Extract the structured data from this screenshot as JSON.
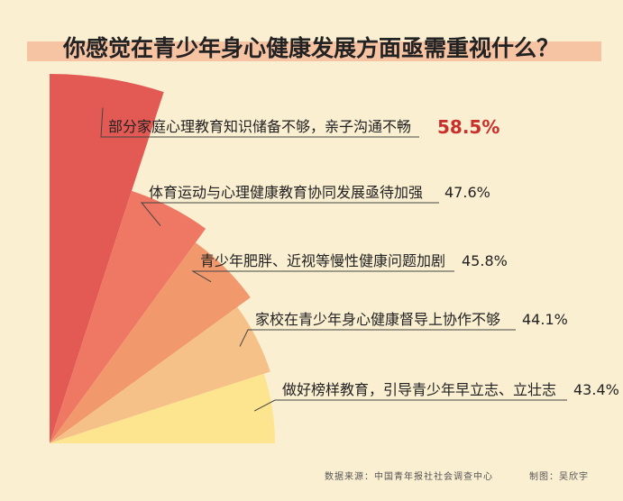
{
  "chart_data": {
    "type": "pie",
    "title": "你感觉在青少年身心健康发展方面亟需重视什么？",
    "categories": [
      "部分家庭心理教育知识储备不够，亲子沟通不畅",
      "体育运动与心理健康教育协同发展亟待加强",
      "青少年肥胖、近视等慢性健康问题加剧",
      "家校在青少年身心健康督导上协作不够",
      "做好榜样教育，引导青少年早立志、立壮志"
    ],
    "values": [
      58.5,
      47.6,
      45.8,
      44.1,
      43.4
    ],
    "value_labels": [
      "58.5%",
      "47.6%",
      "45.8%",
      "44.1%",
      "43.4%"
    ],
    "colors": [
      "#e35a55",
      "#ee7863",
      "#f1996c",
      "#f5c189",
      "#fde590"
    ],
    "highlight_color": "#c9302c"
  },
  "footer": {
    "source": "数据来源：中国青年报社社会调查中心",
    "credit": "制图：吴欣宇"
  }
}
